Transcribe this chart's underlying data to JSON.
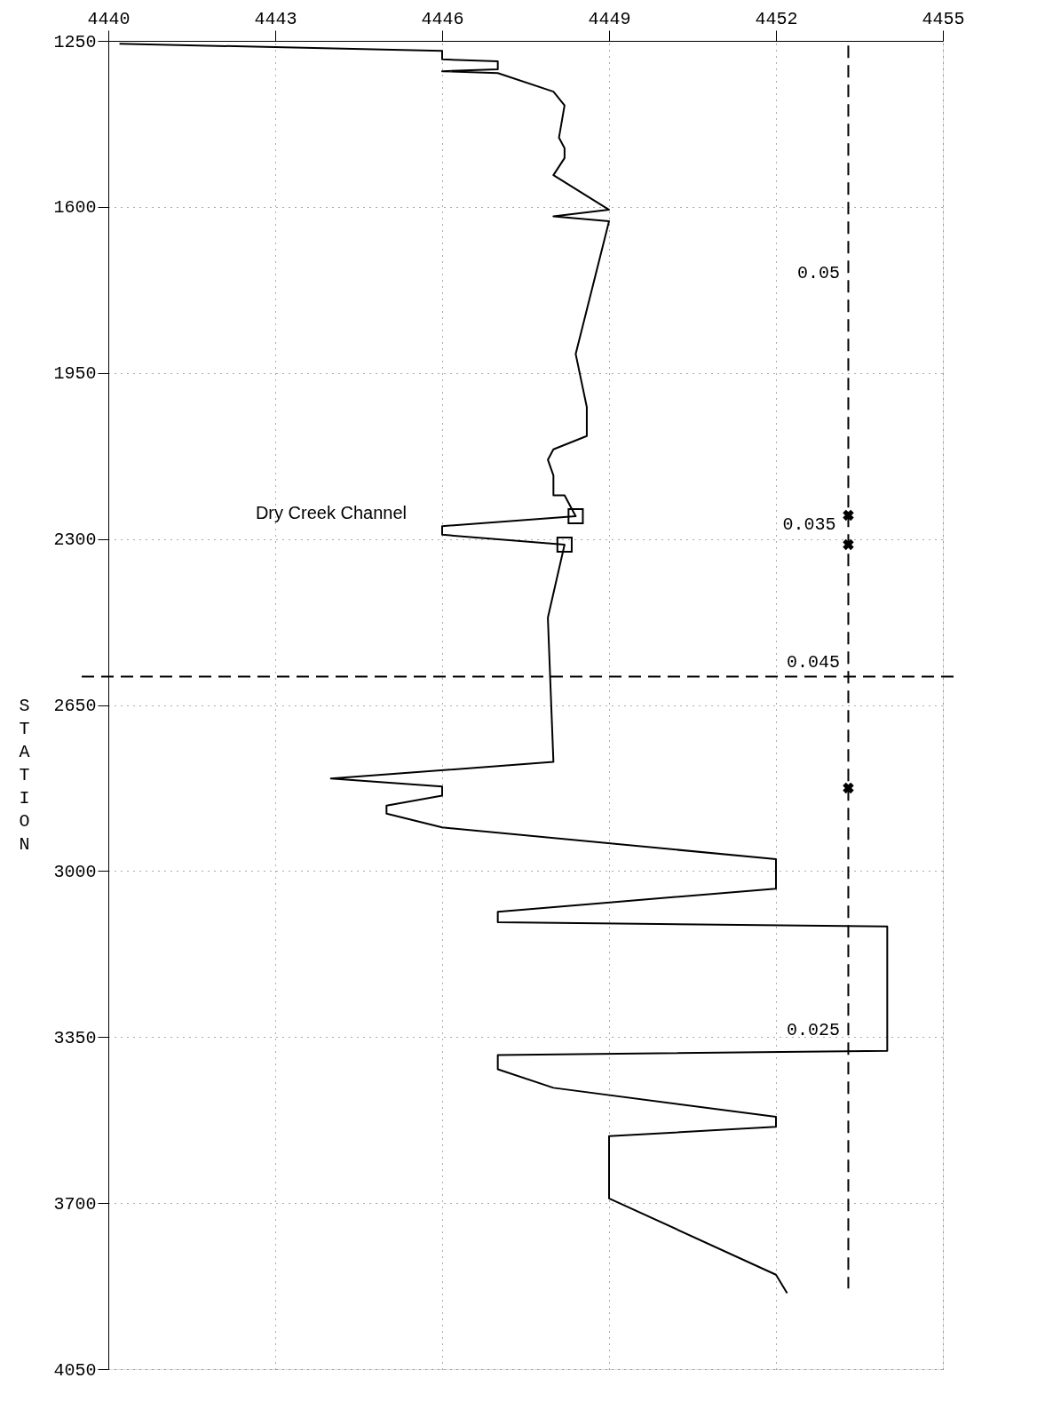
{
  "chart_data": {
    "type": "line",
    "ylabel": "STATION",
    "xlim": [
      4440,
      4455
    ],
    "xticks": [
      4440,
      4443,
      4446,
      4449,
      4452,
      4455
    ],
    "ylim": [
      4050,
      1250
    ],
    "yticks": [
      1250,
      1600,
      1950,
      2300,
      2650,
      3000,
      3350,
      3700,
      4050
    ],
    "grid": true,
    "series": [
      {
        "color": "#000000",
        "line_style": "solid",
        "x": [
          4440.2,
          4446.0,
          4446.0,
          4447.0,
          4447.0,
          4446.0,
          4447.0,
          4448.0,
          4448.2,
          4448.1,
          4448.2,
          4448.2,
          4448.0,
          4449.0,
          4448.0,
          4449.0,
          4448.4,
          4448.6,
          4448.6,
          4448.0,
          4447.9,
          4448.0,
          4448.0,
          4448.2,
          4448.4,
          4446.0,
          4446.0,
          4448.2,
          4447.9,
          4448.0,
          4444.0,
          4446.0,
          4446.0,
          4445.0,
          4445.0,
          4446.0,
          4452.0,
          4452.0,
          4447.0,
          4447.0,
          4454.0,
          4454.0,
          4447.0,
          4447.0,
          4448.0,
          4452.0,
          4452.0,
          4449.0,
          4449.0,
          4452.0,
          4452.2
        ],
        "values": [
          1256,
          1271,
          1289,
          1293,
          1310,
          1314,
          1318,
          1357,
          1386,
          1454,
          1476,
          1497,
          1533,
          1606,
          1620,
          1630,
          1910,
          2022,
          2083,
          2111,
          2133,
          2166,
          2208,
          2208,
          2252,
          2273,
          2291,
          2312,
          2466,
          2770,
          2805,
          2822,
          2841,
          2862,
          2879,
          2908,
          2975,
          3037,
          3086,
          3108,
          3117,
          3379,
          3388,
          3418,
          3457,
          3518,
          3539,
          3559,
          3690,
          3851,
          3890
        ]
      },
      {
        "type": "scatter",
        "color": "#000000",
        "marker": "square",
        "x": [
          4448.4,
          4448.2
        ],
        "values": [
          2252,
          2312
        ]
      },
      {
        "type": "line",
        "color": "#000000",
        "line_style": "dashed",
        "x": [
          4453.3,
          4453.3
        ],
        "values": [
          1260,
          3880
        ]
      },
      {
        "type": "scatter",
        "color": "#000000",
        "marker": "cross",
        "x": [
          4453.3,
          4453.3,
          4453.3
        ],
        "values": [
          2250,
          2312,
          2825
        ]
      }
    ],
    "ref_lines": [
      {
        "axis": "y",
        "value": 2590,
        "color": "#000000",
        "line_style": "dashed"
      }
    ],
    "annotations": [
      "0.05",
      {
        "text": "0.035",
        "x": 4453.3,
        "y": 2250
      },
      "0.045",
      "0.025",
      {
        "text": "Dry Creek Channel",
        "x": 4446.0,
        "y": 2273
      }
    ]
  }
}
